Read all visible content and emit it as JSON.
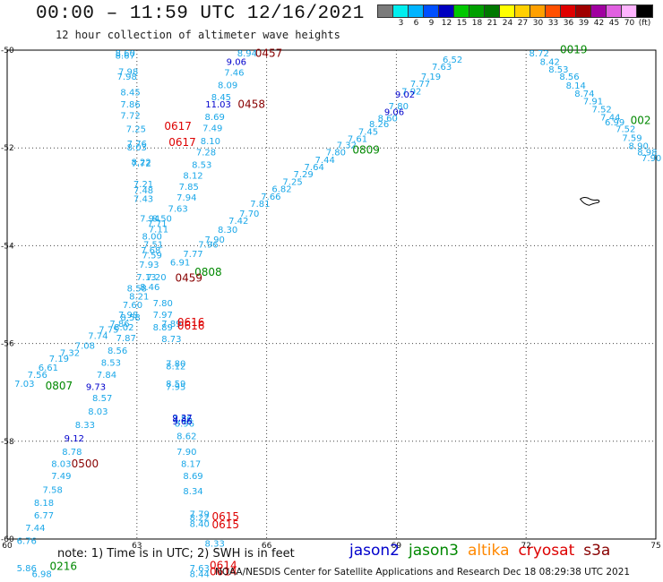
{
  "header": {
    "title": "00:00 – 11:59 UTC 12/16/2021",
    "subtitle": "12 hour collection of altimeter wave heights"
  },
  "legend": {
    "unit": "(ft)",
    "bins": [
      {
        "color": "#7b7b7b",
        "label": ""
      },
      {
        "color": "#00eeee",
        "label": "3"
      },
      {
        "color": "#00b4ff",
        "label": "6"
      },
      {
        "color": "#0050ff",
        "label": "9"
      },
      {
        "color": "#0000c0",
        "label": "12"
      },
      {
        "color": "#00c800",
        "label": "15"
      },
      {
        "color": "#00a000",
        "label": "18"
      },
      {
        "color": "#007800",
        "label": "21"
      },
      {
        "color": "#ffff00",
        "label": "24"
      },
      {
        "color": "#ffd000",
        "label": "27"
      },
      {
        "color": "#ffa000",
        "label": "30"
      },
      {
        "color": "#ff5000",
        "label": "33"
      },
      {
        "color": "#e00000",
        "label": "36"
      },
      {
        "color": "#a00000",
        "label": "39"
      },
      {
        "color": "#a000a0",
        "label": "42"
      },
      {
        "color": "#e060e0",
        "label": "45"
      },
      {
        "color": "#ffb4ff",
        "label": "70"
      },
      {
        "color": "#000000",
        "label": ""
      }
    ]
  },
  "footer": {
    "note": "note:  1) Time is in UTC;  2) SWH is in feet",
    "satellites": [
      {
        "name": "jason2",
        "color": "#0000cc"
      },
      {
        "name": "jason3",
        "color": "#008800"
      },
      {
        "name": "altika",
        "color": "#ff8800"
      },
      {
        "name": "cryosat",
        "color": "#dd0000"
      },
      {
        "name": "s3a",
        "color": "#880000"
      }
    ],
    "credit": "NOAA/NESDIS Center for Satellite Applications and Research    Dec 18 08:29:38 UTC 2021"
  },
  "chart_data": {
    "type": "scatter",
    "title": "00:00 – 11:59 UTC 12/16/2021",
    "subtitle": "12 hour collection of altimeter wave heights",
    "xlabel": "",
    "ylabel": "",
    "xlim": [
      60,
      75
    ],
    "ylim": [
      -60,
      -50
    ],
    "grid": true,
    "xticks": [
      "60",
      "63",
      "66",
      "69",
      "72",
      "75"
    ],
    "yticks": [
      "-50",
      "-52",
      "-54",
      "-56",
      "-58",
      "-60"
    ],
    "colors": {
      "cyan": "#1aa7e8",
      "blue": "#0000cc",
      "green": "#008800",
      "red": "#dd0000",
      "maroon": "#880000"
    },
    "points": [
      {
        "x": 62.73,
        "y": -50.07,
        "t": "8.60",
        "c": "cyan"
      },
      {
        "x": 62.73,
        "y": -50.12,
        "t": "8.67",
        "c": "cyan"
      },
      {
        "x": 62.8,
        "y": -50.45,
        "t": "7.98",
        "c": "cyan"
      },
      {
        "x": 62.77,
        "y": -50.55,
        "t": "7.98",
        "c": "cyan"
      },
      {
        "x": 62.85,
        "y": -50.87,
        "t": "8.45",
        "c": "cyan"
      },
      {
        "x": 62.85,
        "y": -51.12,
        "t": "7.86",
        "c": "cyan"
      },
      {
        "x": 62.85,
        "y": -51.35,
        "t": "7.72",
        "c": "cyan"
      },
      {
        "x": 62.98,
        "y": -51.62,
        "t": "7.25",
        "c": "cyan"
      },
      {
        "x": 63.0,
        "y": -51.92,
        "t": "7.76",
        "c": "cyan"
      },
      {
        "x": 63.0,
        "y": -52.0,
        "t": "8.03",
        "c": "cyan"
      },
      {
        "x": 63.1,
        "y": -52.3,
        "t": "8.22",
        "c": "cyan"
      },
      {
        "x": 63.1,
        "y": -52.33,
        "t": "7.72",
        "c": "cyan"
      },
      {
        "x": 63.15,
        "y": -52.75,
        "t": "7.21",
        "c": "cyan"
      },
      {
        "x": 63.15,
        "y": -52.88,
        "t": "7.48",
        "c": "cyan"
      },
      {
        "x": 63.15,
        "y": -53.05,
        "t": "7.43",
        "c": "cyan"
      },
      {
        "x": 63.3,
        "y": -53.45,
        "t": "7.94",
        "c": "cyan"
      },
      {
        "x": 63.58,
        "y": -53.45,
        "t": "8.50",
        "c": "cyan"
      },
      {
        "x": 63.47,
        "y": -53.55,
        "t": "7.71",
        "c": "cyan"
      },
      {
        "x": 63.5,
        "y": -53.67,
        "t": "7.11",
        "c": "cyan"
      },
      {
        "x": 63.35,
        "y": -53.82,
        "t": "8.00",
        "c": "cyan"
      },
      {
        "x": 63.38,
        "y": -53.98,
        "t": "7.51",
        "c": "cyan"
      },
      {
        "x": 63.32,
        "y": -54.1,
        "t": "7.68",
        "c": "cyan"
      },
      {
        "x": 63.35,
        "y": -54.2,
        "t": "7.59",
        "c": "cyan"
      },
      {
        "x": 63.28,
        "y": -54.4,
        "t": "7.93",
        "c": "cyan"
      },
      {
        "x": 63.22,
        "y": -54.65,
        "t": "7.13",
        "c": "cyan"
      },
      {
        "x": 63.45,
        "y": -54.65,
        "t": "7.20",
        "c": "cyan"
      },
      {
        "x": 63.0,
        "y": -54.88,
        "t": "8.58",
        "c": "cyan"
      },
      {
        "x": 63.3,
        "y": -54.85,
        "t": "8.46",
        "c": "cyan"
      },
      {
        "x": 63.05,
        "y": -55.05,
        "t": "8.21",
        "c": "cyan"
      },
      {
        "x": 62.9,
        "y": -55.22,
        "t": "7.60",
        "c": "cyan"
      },
      {
        "x": 63.6,
        "y": -55.18,
        "t": "7.80",
        "c": "cyan"
      },
      {
        "x": 62.8,
        "y": -55.42,
        "t": "7.98",
        "c": "cyan"
      },
      {
        "x": 62.85,
        "y": -55.48,
        "t": "8.58",
        "c": "cyan"
      },
      {
        "x": 63.6,
        "y": -55.42,
        "t": "7.97",
        "c": "cyan"
      },
      {
        "x": 62.6,
        "y": -55.6,
        "t": "7.86",
        "c": "cyan"
      },
      {
        "x": 62.7,
        "y": -55.68,
        "t": "8.02",
        "c": "cyan"
      },
      {
        "x": 63.8,
        "y": -55.6,
        "t": "7.89",
        "c": "cyan"
      },
      {
        "x": 63.6,
        "y": -55.68,
        "t": "8.89",
        "c": "cyan"
      },
      {
        "x": 62.35,
        "y": -55.72,
        "t": "7.75",
        "c": "cyan"
      },
      {
        "x": 62.75,
        "y": -55.9,
        "t": "7.87",
        "c": "cyan"
      },
      {
        "x": 62.1,
        "y": -55.85,
        "t": "7.74",
        "c": "cyan"
      },
      {
        "x": 63.8,
        "y": -55.92,
        "t": "8.73",
        "c": "cyan"
      },
      {
        "x": 61.8,
        "y": -56.05,
        "t": "7.08",
        "c": "cyan"
      },
      {
        "x": 62.55,
        "y": -56.15,
        "t": "8.56",
        "c": "cyan"
      },
      {
        "x": 61.45,
        "y": -56.2,
        "t": "7.32",
        "c": "cyan"
      },
      {
        "x": 61.2,
        "y": -56.32,
        "t": "7.19",
        "c": "cyan"
      },
      {
        "x": 62.4,
        "y": -56.4,
        "t": "8.53",
        "c": "cyan"
      },
      {
        "x": 63.9,
        "y": -56.42,
        "t": "7.80",
        "c": "cyan"
      },
      {
        "x": 63.9,
        "y": -56.47,
        "t": "8.12",
        "c": "cyan"
      },
      {
        "x": 60.95,
        "y": -56.5,
        "t": "6.61",
        "c": "cyan"
      },
      {
        "x": 60.7,
        "y": -56.65,
        "t": "7.56",
        "c": "cyan"
      },
      {
        "x": 62.3,
        "y": -56.65,
        "t": "7.84",
        "c": "cyan"
      },
      {
        "x": 60.4,
        "y": -56.83,
        "t": "7.03",
        "c": "cyan"
      },
      {
        "x": 63.9,
        "y": -56.83,
        "t": "8.59",
        "c": "cyan"
      },
      {
        "x": 63.9,
        "y": -56.9,
        "t": "7.95",
        "c": "cyan"
      },
      {
        "x": 62.2,
        "y": -57.12,
        "t": "8.57",
        "c": "cyan"
      },
      {
        "x": 62.1,
        "y": -57.4,
        "t": "8.03",
        "c": "cyan"
      },
      {
        "x": 64.05,
        "y": -57.55,
        "t": "7.86",
        "c": "cyan"
      },
      {
        "x": 64.1,
        "y": -57.65,
        "t": "8.96",
        "c": "cyan"
      },
      {
        "x": 61.8,
        "y": -57.67,
        "t": "8.33",
        "c": "cyan"
      },
      {
        "x": 64.15,
        "y": -57.9,
        "t": "8.62",
        "c": "cyan"
      },
      {
        "x": 61.5,
        "y": -58.22,
        "t": "8.78",
        "c": "cyan"
      },
      {
        "x": 64.15,
        "y": -58.22,
        "t": "7.90",
        "c": "cyan"
      },
      {
        "x": 61.25,
        "y": -58.47,
        "t": "8.03",
        "c": "cyan"
      },
      {
        "x": 64.25,
        "y": -58.47,
        "t": "8.17",
        "c": "cyan"
      },
      {
        "x": 61.25,
        "y": -58.72,
        "t": "7.49",
        "c": "cyan"
      },
      {
        "x": 64.3,
        "y": -58.72,
        "t": "8.69",
        "c": "cyan"
      },
      {
        "x": 61.05,
        "y": -59.0,
        "t": "7.58",
        "c": "cyan"
      },
      {
        "x": 64.3,
        "y": -59.03,
        "t": "8.34",
        "c": "cyan"
      },
      {
        "x": 60.85,
        "y": -59.27,
        "t": "8.18",
        "c": "cyan"
      },
      {
        "x": 60.85,
        "y": -59.52,
        "t": "6.77",
        "c": "cyan"
      },
      {
        "x": 64.45,
        "y": -59.5,
        "t": "7.79",
        "c": "cyan"
      },
      {
        "x": 64.45,
        "y": -59.57,
        "t": "8.22",
        "c": "cyan"
      },
      {
        "x": 64.45,
        "y": -59.7,
        "t": "8.40",
        "c": "cyan"
      },
      {
        "x": 60.65,
        "y": -59.78,
        "t": "7.44",
        "c": "cyan"
      },
      {
        "x": 60.45,
        "y": -60.05,
        "t": "6.76",
        "c": "cyan"
      },
      {
        "x": 64.8,
        "y": -60.1,
        "t": "8.33",
        "c": "cyan"
      },
      {
        "x": 60.45,
        "y": -60.6,
        "t": "5.86",
        "c": "cyan"
      },
      {
        "x": 64.45,
        "y": -60.6,
        "t": "7.63",
        "c": "cyan"
      },
      {
        "x": 60.8,
        "y": -60.72,
        "t": "6.98",
        "c": "cyan"
      },
      {
        "x": 64.45,
        "y": -60.72,
        "t": "8.44",
        "c": "cyan"
      },
      {
        "x": 65.55,
        "y": -50.07,
        "t": "8.94",
        "c": "cyan"
      },
      {
        "x": 65.25,
        "y": -50.47,
        "t": "7.46",
        "c": "cyan"
      },
      {
        "x": 65.1,
        "y": -50.72,
        "t": "8.09",
        "c": "cyan"
      },
      {
        "x": 64.95,
        "y": -50.97,
        "t": "8.45",
        "c": "cyan"
      },
      {
        "x": 64.8,
        "y": -51.37,
        "t": "8.69",
        "c": "cyan"
      },
      {
        "x": 64.75,
        "y": -51.6,
        "t": "7.49",
        "c": "cyan"
      },
      {
        "x": 64.7,
        "y": -51.87,
        "t": "8.10",
        "c": "cyan"
      },
      {
        "x": 64.6,
        "y": -52.1,
        "t": "7.28",
        "c": "cyan"
      },
      {
        "x": 64.5,
        "y": -52.35,
        "t": "8.53",
        "c": "cyan"
      },
      {
        "x": 64.3,
        "y": -52.57,
        "t": "8.12",
        "c": "cyan"
      },
      {
        "x": 64.2,
        "y": -52.8,
        "t": "7.85",
        "c": "cyan"
      },
      {
        "x": 64.15,
        "y": -53.02,
        "t": "7.94",
        "c": "cyan"
      },
      {
        "x": 63.95,
        "y": -53.25,
        "t": "7.63",
        "c": "cyan"
      },
      {
        "x": 64.0,
        "y": -54.35,
        "t": "6.91",
        "c": "cyan"
      },
      {
        "x": 64.3,
        "y": -54.18,
        "t": "7.77",
        "c": "cyan"
      },
      {
        "x": 64.65,
        "y": -53.98,
        "t": "7.96",
        "c": "cyan"
      },
      {
        "x": 64.8,
        "y": -53.88,
        "t": "7.90",
        "c": "cyan"
      },
      {
        "x": 65.1,
        "y": -53.68,
        "t": "8.30",
        "c": "cyan"
      },
      {
        "x": 65.35,
        "y": -53.5,
        "t": "7.42",
        "c": "cyan"
      },
      {
        "x": 65.6,
        "y": -53.35,
        "t": "7.70",
        "c": "cyan"
      },
      {
        "x": 65.85,
        "y": -53.15,
        "t": "7.81",
        "c": "cyan"
      },
      {
        "x": 66.1,
        "y": -53.0,
        "t": "7.66",
        "c": "cyan"
      },
      {
        "x": 66.35,
        "y": -52.85,
        "t": "6.82",
        "c": "cyan"
      },
      {
        "x": 66.6,
        "y": -52.7,
        "t": "7.25",
        "c": "cyan"
      },
      {
        "x": 66.85,
        "y": -52.55,
        "t": "7.29",
        "c": "cyan"
      },
      {
        "x": 67.1,
        "y": -52.4,
        "t": "7.64",
        "c": "cyan"
      },
      {
        "x": 67.35,
        "y": -52.25,
        "t": "7.44",
        "c": "cyan"
      },
      {
        "x": 67.6,
        "y": -52.1,
        "t": "7.80",
        "c": "cyan"
      },
      {
        "x": 67.85,
        "y": -51.95,
        "t": "7.32",
        "c": "cyan"
      },
      {
        "x": 68.1,
        "y": -51.82,
        "t": "7.61",
        "c": "cyan"
      },
      {
        "x": 68.35,
        "y": -51.68,
        "t": "7.45",
        "c": "cyan"
      },
      {
        "x": 68.6,
        "y": -51.52,
        "t": "8.26",
        "c": "cyan"
      },
      {
        "x": 68.8,
        "y": -51.4,
        "t": "8.60",
        "c": "cyan"
      },
      {
        "x": 69.05,
        "y": -51.15,
        "t": "7.80",
        "c": "cyan"
      },
      {
        "x": 69.35,
        "y": -50.85,
        "t": "7.92",
        "c": "cyan"
      },
      {
        "x": 69.55,
        "y": -50.7,
        "t": "7.77",
        "c": "cyan"
      },
      {
        "x": 69.8,
        "y": -50.55,
        "t": "7.19",
        "c": "cyan"
      },
      {
        "x": 70.05,
        "y": -50.35,
        "t": "7.63",
        "c": "cyan"
      },
      {
        "x": 70.3,
        "y": -50.2,
        "t": "6.52",
        "c": "cyan"
      },
      {
        "x": 72.3,
        "y": -50.07,
        "t": "8.72",
        "c": "cyan"
      },
      {
        "x": 72.55,
        "y": -50.25,
        "t": "8.42",
        "c": "cyan"
      },
      {
        "x": 72.75,
        "y": -50.4,
        "t": "8.53",
        "c": "cyan"
      },
      {
        "x": 73.0,
        "y": -50.55,
        "t": "8.56",
        "c": "cyan"
      },
      {
        "x": 73.15,
        "y": -50.73,
        "t": "8.14",
        "c": "cyan"
      },
      {
        "x": 73.35,
        "y": -50.9,
        "t": "8.74",
        "c": "cyan"
      },
      {
        "x": 73.55,
        "y": -51.05,
        "t": "7.91",
        "c": "cyan"
      },
      {
        "x": 73.75,
        "y": -51.22,
        "t": "7.52",
        "c": "cyan"
      },
      {
        "x": 73.95,
        "y": -51.38,
        "t": "7.44",
        "c": "cyan"
      },
      {
        "x": 74.05,
        "y": -51.48,
        "t": "6.99",
        "c": "cyan"
      },
      {
        "x": 74.3,
        "y": -51.62,
        "t": "7.52",
        "c": "cyan"
      },
      {
        "x": 74.45,
        "y": -51.8,
        "t": "7.59",
        "c": "cyan"
      },
      {
        "x": 74.6,
        "y": -51.97,
        "t": "8.90",
        "c": "cyan"
      },
      {
        "x": 74.8,
        "y": -52.1,
        "t": "8.98",
        "c": "cyan"
      },
      {
        "x": 74.9,
        "y": -52.22,
        "t": "7.90",
        "c": "cyan"
      },
      {
        "x": 65.3,
        "y": -50.25,
        "t": "9.06",
        "c": "blue"
      },
      {
        "x": 64.88,
        "y": -51.12,
        "t": "11.03",
        "c": "blue"
      },
      {
        "x": 69.2,
        "y": -50.92,
        "t": "9.02",
        "c": "blue"
      },
      {
        "x": 68.95,
        "y": -51.27,
        "t": "9.06",
        "c": "blue"
      },
      {
        "x": 62.05,
        "y": -56.9,
        "t": "9.73",
        "c": "blue"
      },
      {
        "x": 64.05,
        "y": -57.53,
        "t": "9.37",
        "c": "blue"
      },
      {
        "x": 64.05,
        "y": -57.6,
        "t": "9.66",
        "c": "blue"
      },
      {
        "x": 61.55,
        "y": -57.95,
        "t": "9.12",
        "c": "blue"
      },
      {
        "x": 73.1,
        "y": -50.0,
        "t": "0019",
        "c": "green"
      },
      {
        "x": 74.65,
        "y": -51.45,
        "t": "002",
        "c": "green"
      },
      {
        "x": 68.3,
        "y": -52.05,
        "t": "0809",
        "c": "green"
      },
      {
        "x": 64.65,
        "y": -54.55,
        "t": "0808",
        "c": "green"
      },
      {
        "x": 61.2,
        "y": -56.88,
        "t": "0807",
        "c": "green"
      },
      {
        "x": 61.3,
        "y": -60.57,
        "t": "0216",
        "c": "green"
      },
      {
        "x": 63.95,
        "y": -51.57,
        "t": "0617",
        "c": "red"
      },
      {
        "x": 64.05,
        "y": -51.9,
        "t": "0617",
        "c": "red"
      },
      {
        "x": 64.25,
        "y": -55.58,
        "t": "0616",
        "c": "red"
      },
      {
        "x": 64.25,
        "y": -55.65,
        "t": "0616",
        "c": "red"
      },
      {
        "x": 65.05,
        "y": -59.55,
        "t": "0615",
        "c": "red"
      },
      {
        "x": 65.05,
        "y": -59.72,
        "t": "0615",
        "c": "red"
      },
      {
        "x": 65.0,
        "y": -60.55,
        "t": "0614",
        "c": "red"
      },
      {
        "x": 65.0,
        "y": -60.68,
        "t": "0614",
        "c": "red"
      },
      {
        "x": 66.05,
        "y": -50.07,
        "t": "0457",
        "c": "maroon"
      },
      {
        "x": 65.65,
        "y": -51.12,
        "t": "0458",
        "c": "maroon"
      },
      {
        "x": 64.2,
        "y": -54.67,
        "t": "0459",
        "c": "maroon"
      },
      {
        "x": 61.8,
        "y": -58.47,
        "t": "0500",
        "c": "maroon"
      }
    ]
  }
}
